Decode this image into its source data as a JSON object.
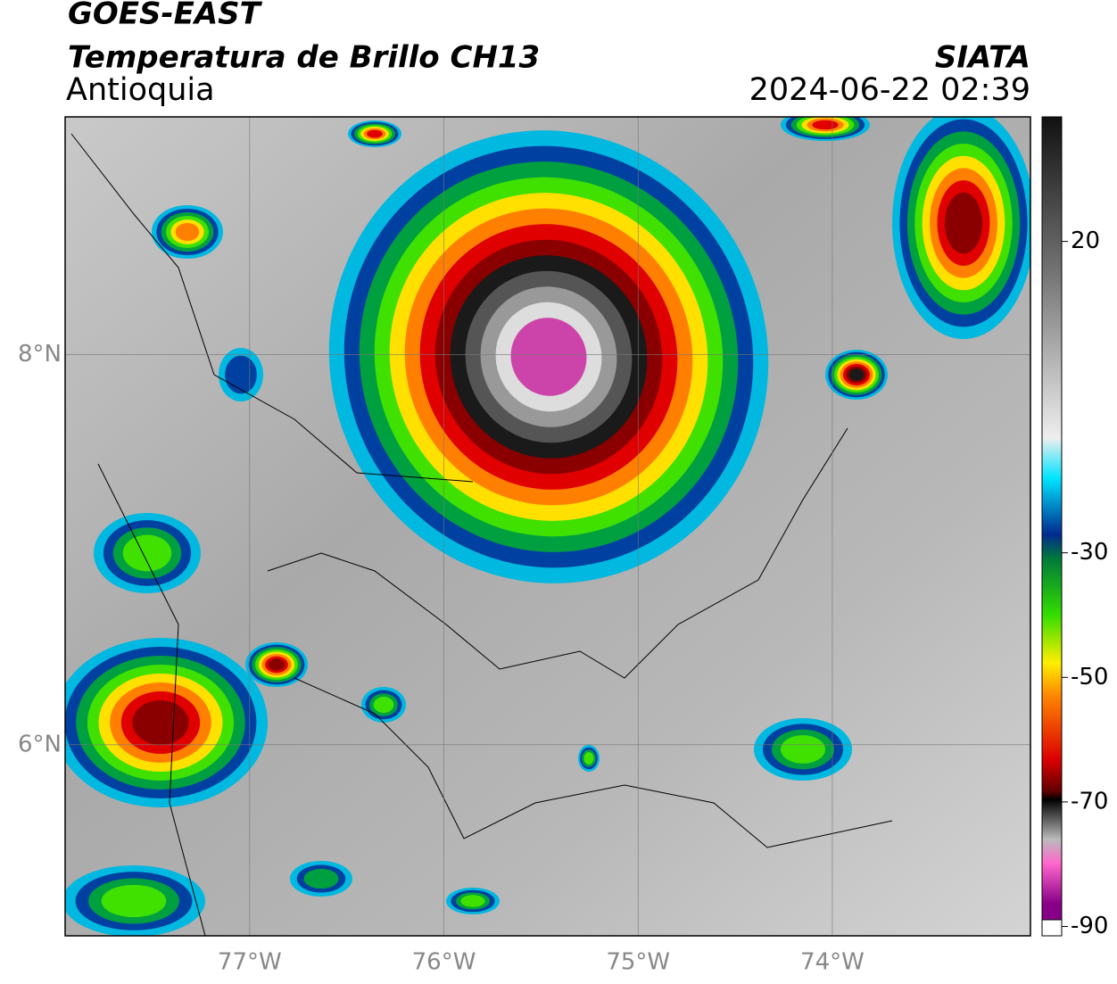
{
  "header": {
    "title": "GOES-EAST",
    "subtitle": "Temperatura de Brillo CH13",
    "region": "Antioquia",
    "source": "SIATA",
    "timestamp": "2024-06-22 02:39"
  },
  "map": {
    "xlim": [
      -77.95,
      -72.98
    ],
    "ylim": [
      5.02,
      9.22
    ],
    "xticks": [
      {
        "value": -77,
        "label": "77°W"
      },
      {
        "value": -76,
        "label": "76°W"
      },
      {
        "value": -75,
        "label": "75°W"
      },
      {
        "value": -74,
        "label": "74°W"
      }
    ],
    "yticks": [
      {
        "value": 8,
        "label": "8°N"
      },
      {
        "value": 6,
        "label": "6°N"
      }
    ]
  },
  "colorbar": {
    "lim": [
      -91.5,
      40
    ],
    "ticks": [
      20,
      -30,
      -50,
      -70,
      -90
    ]
  }
}
